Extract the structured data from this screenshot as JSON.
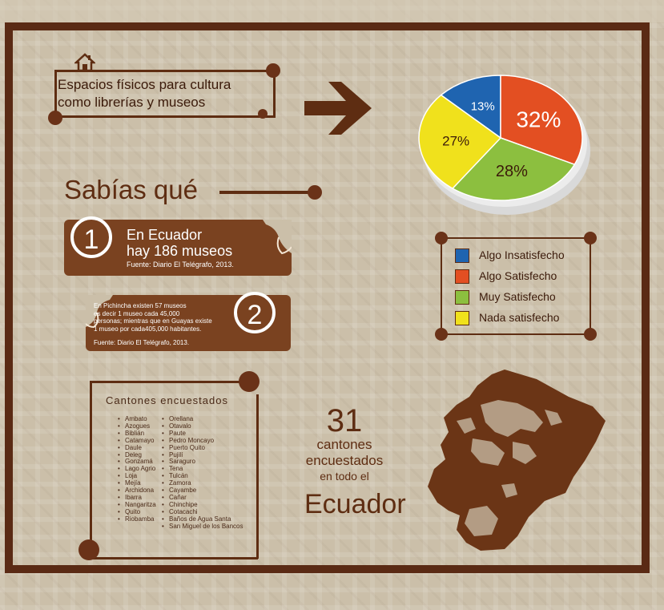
{
  "header": {
    "line1": "Espacios físicos para cultura",
    "line2": "como librerías y museos"
  },
  "icons": {
    "home": "house-icon",
    "arrow": "arrow-right-icon"
  },
  "pie": {
    "slices": [
      {
        "label": "13%",
        "value": 13,
        "category": "Algo Insatisfecho",
        "color": "#1f64b0"
      },
      {
        "label": "32%",
        "value": 32,
        "category": "Algo Satisfecho",
        "color": "#e34f22"
      },
      {
        "label": "28%",
        "value": 28,
        "category": "Muy Satisfecho",
        "color": "#8cbf3f"
      },
      {
        "label": "27%",
        "value": 27,
        "category": "Nada satisfecho",
        "color": "#f0e11c"
      }
    ]
  },
  "legend": {
    "items": [
      {
        "label": "Algo Insatisfecho",
        "color": "#1f64b0"
      },
      {
        "label": "Algo Satisfecho",
        "color": "#e34f22"
      },
      {
        "label": "Muy Satisfecho",
        "color": "#8cbf3f"
      },
      {
        "label": "Nada satisfecho",
        "color": "#f0e11c"
      }
    ]
  },
  "sabias": {
    "title": "Sabías qué"
  },
  "fact1": {
    "number": "1",
    "line1": "En Ecuador",
    "line2": "hay 186 museos",
    "source": "Fuente: Diario El Telégrafo, 2013."
  },
  "fact2": {
    "number": "2",
    "line1": "En Pichincha existen 57 museos",
    "line2": "es decir 1 museo cada 45,000",
    "line3": "personas; mientras que en Guayas existe",
    "line4": "1 museo por cada405,000 habitantes.",
    "source": "Fuente: Diario El Telégrafo, 2013."
  },
  "cantones": {
    "title": "Cantones encuestados",
    "col1": [
      "Ambato",
      "Azogues",
      "Biblián",
      "Catamayo",
      "Daule",
      "Deleg",
      "Gonzamá",
      "Lago Agrio",
      "Loja",
      "Mejía",
      "Archidona",
      "Ibarra",
      "Nangaritza",
      "Quito",
      "Riobamba"
    ],
    "col2": [
      "Orellana",
      "Otavalo",
      "Paute",
      "Pedro Moncayo",
      "Puerto Quito",
      "Pujilí",
      "Saraguro",
      "Tena",
      "Tulcán",
      "Zamora",
      "Cayambe",
      "Cañar",
      "Chinchipe",
      "Cotacachi",
      "Baños de Agua Santa",
      "San Miguel de los Bancos"
    ]
  },
  "summary": {
    "number": "31",
    "line1": "cantones",
    "line2": "encuestados",
    "line3": "en todo el",
    "country": "Ecuador"
  },
  "colors": {
    "brown": "#5e2d12",
    "ribbon": "#7a4220"
  }
}
